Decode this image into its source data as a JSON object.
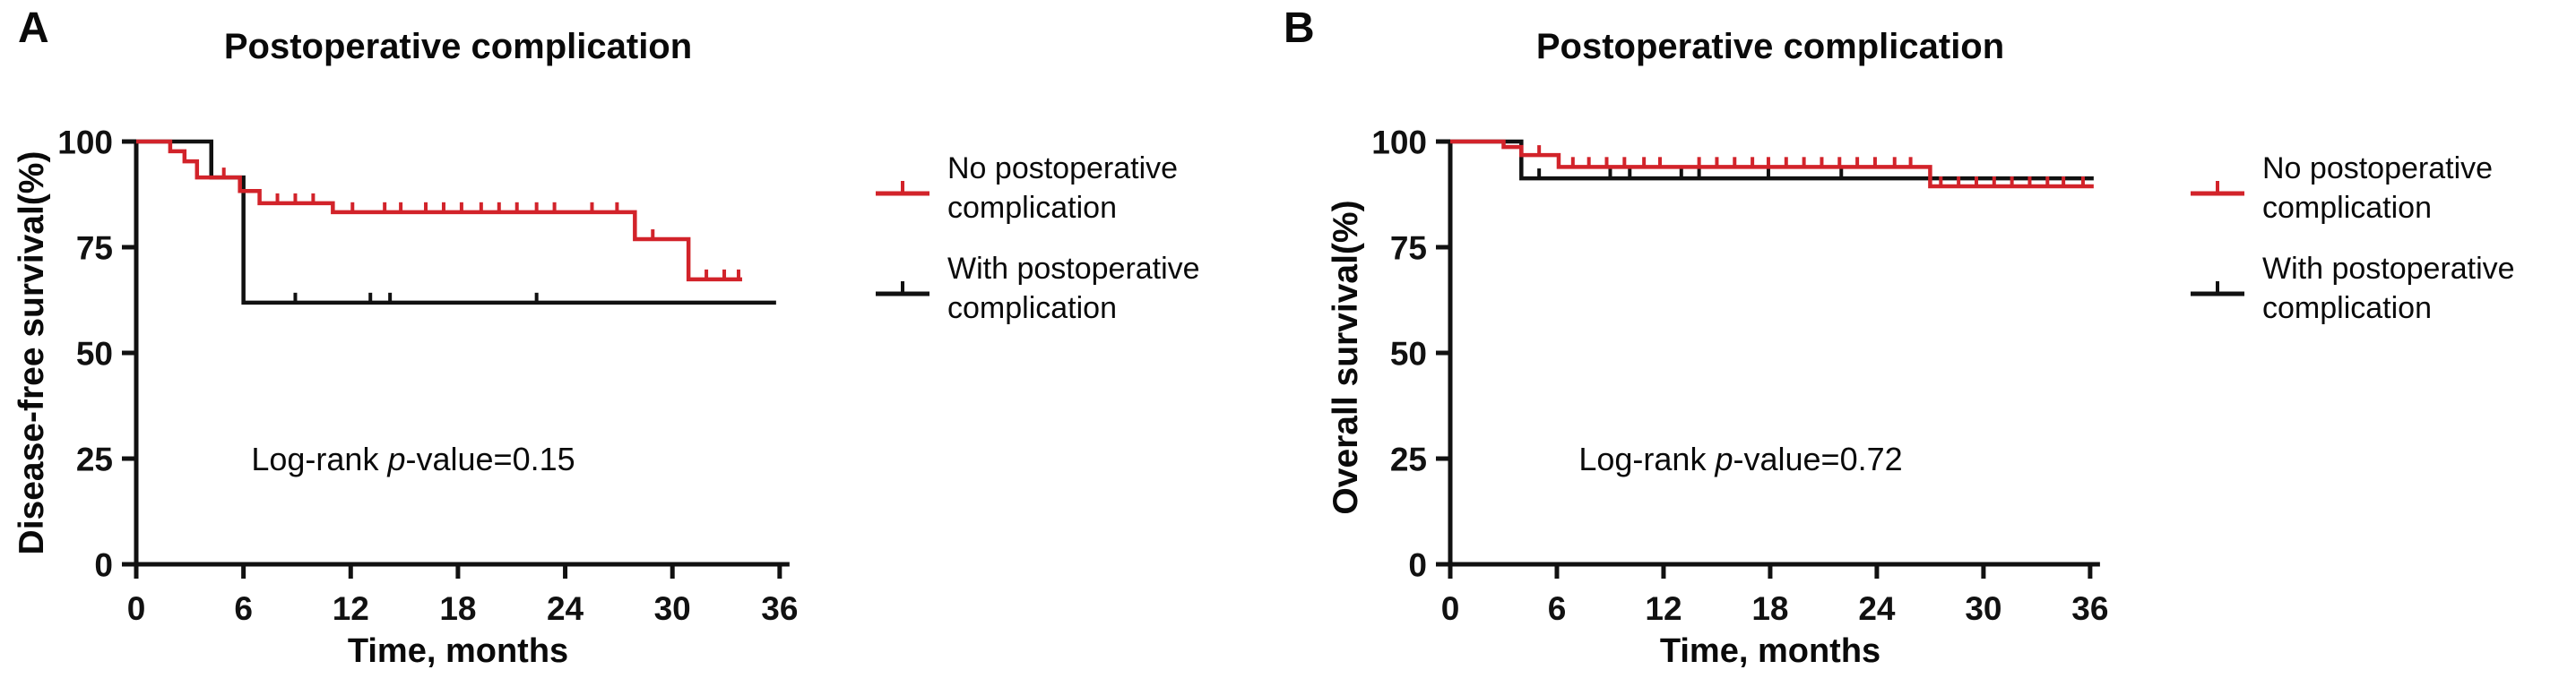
{
  "figure": {
    "background": "#ffffff",
    "text_color": "#0a0a0a",
    "accent_red": "#d2232a",
    "accent_black": "#111111"
  },
  "panels": [
    {
      "letter": "A",
      "annotation": {
        "prefix": "Log-rank ",
        "p": "p",
        "suffix": "-value=0.15"
      }
    },
    {
      "letter": "B",
      "annotation": {
        "prefix": "Log-rank ",
        "p": "p",
        "suffix": "-value=0.72"
      }
    }
  ],
  "chart_data": [
    {
      "type": "line",
      "subtype": "kaplan-meier-step",
      "title": "Postoperative complication",
      "xlabel": "Time, months",
      "ylabel": "Disease-free survival(%)",
      "xlim": [
        0,
        36
      ],
      "ylim": [
        0,
        100
      ],
      "xticks": [
        0,
        6,
        12,
        18,
        24,
        30,
        36
      ],
      "yticks": [
        0,
        25,
        50,
        75,
        100
      ],
      "grid": false,
      "legend_position": "right",
      "log_rank_p_value": "0.15",
      "legend": [
        {
          "line1": "No postoperative",
          "line2": "complication",
          "color": "#d2232a"
        },
        {
          "line1": "With postoperative",
          "line2": "complication",
          "color": "#111111"
        }
      ],
      "series": [
        {
          "name": "With postoperative complication",
          "color": "#111111",
          "start": [
            0,
            100
          ],
          "drops": [
            [
              4.2,
              91.5
            ],
            [
              6.0,
              61.9
            ]
          ],
          "end_x": 35.8,
          "censor_marks": [
            [
              8.9,
              61.9
            ],
            [
              13.1,
              61.9
            ],
            [
              14.2,
              61.9
            ],
            [
              22.4,
              61.9
            ]
          ]
        },
        {
          "name": "No postoperative complication",
          "color": "#d2232a",
          "start": [
            0,
            100
          ],
          "drops": [
            [
              1.9,
              97.7
            ],
            [
              2.7,
              95.3
            ],
            [
              3.4,
              91.5
            ],
            [
              5.8,
              88.3
            ],
            [
              6.9,
              85.4
            ],
            [
              11.0,
              83.3
            ],
            [
              27.9,
              76.9
            ],
            [
              30.9,
              67.4
            ]
          ],
          "end_x": 33.9,
          "censor_marks": [
            [
              4.9,
              91.5
            ],
            [
              7.9,
              85.4
            ],
            [
              8.9,
              85.4
            ],
            [
              9.9,
              85.4
            ],
            [
              12.1,
              83.3
            ],
            [
              13.9,
              83.3
            ],
            [
              14.8,
              83.3
            ],
            [
              16.2,
              83.3
            ],
            [
              17.2,
              83.3
            ],
            [
              18.2,
              83.3
            ],
            [
              19.3,
              83.3
            ],
            [
              20.3,
              83.3
            ],
            [
              21.3,
              83.3
            ],
            [
              22.4,
              83.3
            ],
            [
              23.4,
              83.3
            ],
            [
              25.5,
              83.3
            ],
            [
              26.9,
              83.3
            ],
            [
              28.9,
              76.9
            ],
            [
              31.9,
              67.4
            ],
            [
              32.9,
              67.4
            ],
            [
              33.7,
              67.4
            ]
          ]
        }
      ]
    },
    {
      "type": "line",
      "subtype": "kaplan-meier-step",
      "title": "Postoperative complication",
      "xlabel": "Time, months",
      "ylabel": "Overall survival(%)",
      "xlim": [
        0,
        36
      ],
      "ylim": [
        0,
        100
      ],
      "xticks": [
        0,
        6,
        12,
        18,
        24,
        30,
        36
      ],
      "yticks": [
        0,
        25,
        50,
        75,
        100
      ],
      "grid": false,
      "legend_position": "right",
      "log_rank_p_value": "0.72",
      "legend": [
        {
          "line1": "No postoperative",
          "line2": "complication",
          "color": "#d2232a"
        },
        {
          "line1": "With postoperative",
          "line2": "complication",
          "color": "#111111"
        }
      ],
      "series": [
        {
          "name": "With postoperative complication",
          "color": "#111111",
          "start": [
            0,
            100
          ],
          "drops": [
            [
              4.0,
              91.3
            ]
          ],
          "end_x": 36.2,
          "censor_marks": [
            [
              5.0,
              91.3
            ],
            [
              9.0,
              91.3
            ],
            [
              10.1,
              91.3
            ],
            [
              13.0,
              91.3
            ],
            [
              14.0,
              91.3
            ],
            [
              17.9,
              91.3
            ],
            [
              22.0,
              91.3
            ]
          ]
        },
        {
          "name": "No postoperative complication",
          "color": "#d2232a",
          "start": [
            0,
            100
          ],
          "drops": [
            [
              3.0,
              98.7
            ],
            [
              4.0,
              96.8
            ],
            [
              6.1,
              94.0
            ],
            [
              27.0,
              89.4
            ]
          ],
          "end_x": 36.2,
          "censor_marks": [
            [
              5.0,
              96.8
            ],
            [
              6.9,
              94.0
            ],
            [
              7.8,
              94.0
            ],
            [
              8.8,
              94.0
            ],
            [
              9.8,
              94.0
            ],
            [
              10.9,
              94.0
            ],
            [
              11.8,
              94.0
            ],
            [
              14.0,
              94.0
            ],
            [
              15.0,
              94.0
            ],
            [
              16.0,
              94.0
            ],
            [
              17.0,
              94.0
            ],
            [
              17.9,
              94.0
            ],
            [
              18.9,
              94.0
            ],
            [
              19.9,
              94.0
            ],
            [
              20.9,
              94.0
            ],
            [
              21.9,
              94.0
            ],
            [
              22.9,
              94.0
            ],
            [
              23.9,
              94.0
            ],
            [
              25.0,
              94.0
            ],
            [
              25.9,
              94.0
            ],
            [
              27.6,
              89.4
            ],
            [
              28.6,
              89.4
            ],
            [
              29.6,
              89.4
            ],
            [
              30.6,
              89.4
            ],
            [
              31.6,
              89.4
            ],
            [
              32.6,
              89.4
            ],
            [
              33.6,
              89.4
            ],
            [
              34.5,
              89.4
            ],
            [
              35.6,
              89.4
            ]
          ]
        }
      ]
    }
  ]
}
